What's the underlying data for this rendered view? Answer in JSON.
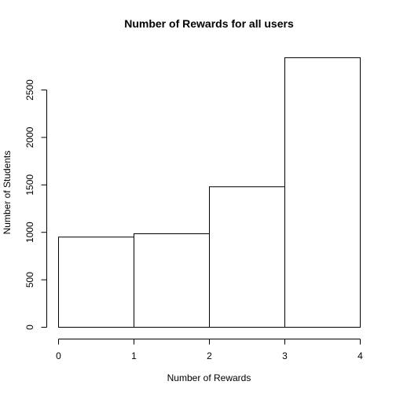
{
  "chart_data": {
    "type": "bar",
    "title": "Number of Rewards for all users",
    "xlabel": "Number of Rewards",
    "ylabel": "Number of Students",
    "bins": [
      {
        "start": 0,
        "end": 1,
        "value": 950
      },
      {
        "start": 1,
        "end": 2,
        "value": 985
      },
      {
        "start": 2,
        "end": 3,
        "value": 1480
      },
      {
        "start": 3,
        "end": 4,
        "value": 2840
      }
    ],
    "xlim": [
      0,
      4
    ],
    "ylim": [
      0,
      2840
    ],
    "xticks": [
      "0",
      "1",
      "2",
      "3",
      "4"
    ],
    "yticks": [
      "0",
      "500",
      "1000",
      "1500",
      "2000",
      "2500"
    ],
    "grid": false,
    "legend": "none"
  }
}
